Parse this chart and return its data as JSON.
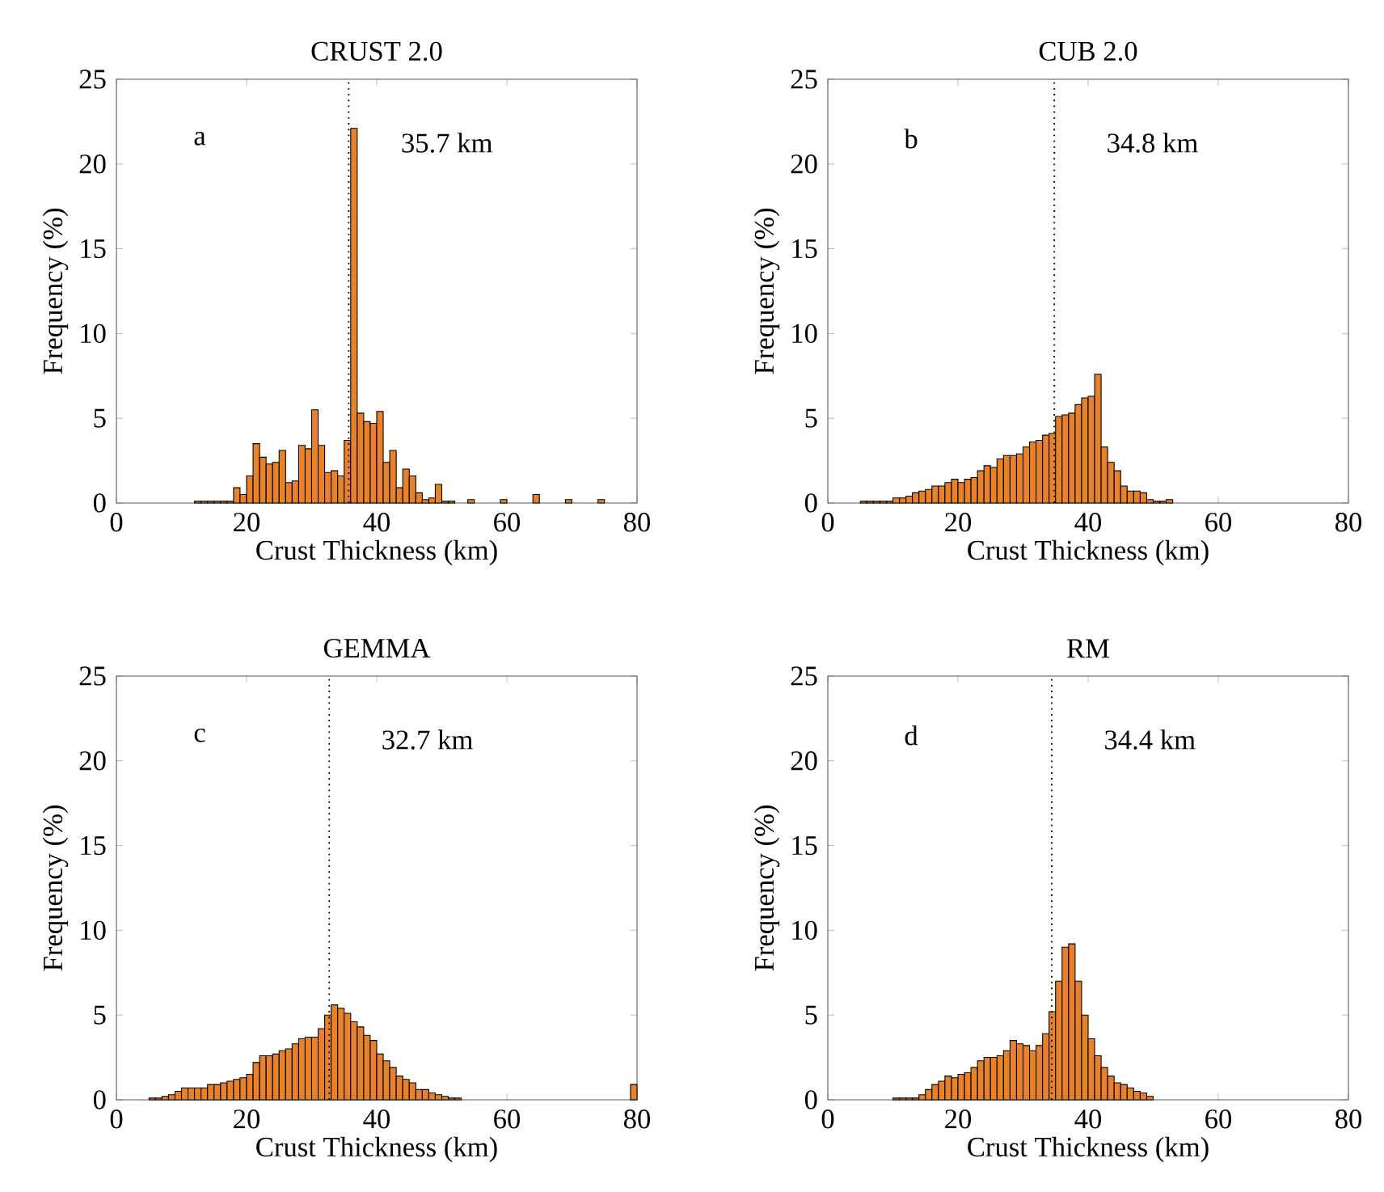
{
  "chart_data": [
    {
      "type": "histogram",
      "title": "CRUST 2.0",
      "xlabel": "Crust Thickness (km)",
      "ylabel": "Frequency (%)",
      "color": "#e8812c",
      "xlim": [
        0,
        80
      ],
      "ylim": [
        0,
        25
      ],
      "xticks": [
        0,
        20,
        40,
        60,
        80
      ],
      "yticks": [
        0,
        5,
        10,
        15,
        20,
        25
      ],
      "annotations": [
        "a"
      ],
      "ref_lines": [
        {
          "axis": "x",
          "value": 35.7,
          "label": "35.7 km",
          "line_style": "dotted"
        }
      ],
      "bins": [
        12,
        13,
        14,
        15,
        16,
        17,
        18,
        19,
        20,
        21,
        22,
        23,
        24,
        25,
        26,
        27,
        28,
        29,
        30,
        31,
        32,
        33,
        34,
        35,
        36,
        37,
        38,
        39,
        40,
        41,
        42,
        43,
        44,
        45,
        46,
        47,
        48,
        49,
        50,
        51,
        52,
        53,
        54,
        55,
        56,
        57,
        58,
        59,
        60,
        61,
        62,
        63,
        64,
        65,
        66,
        67,
        68,
        69,
        70,
        71,
        72,
        73,
        74,
        75
      ],
      "values": [
        0.1,
        0.1,
        0.1,
        0.1,
        0.1,
        0.1,
        0.9,
        0.5,
        1.6,
        3.5,
        2.7,
        2.3,
        2.4,
        3.1,
        1.2,
        1.3,
        3.4,
        3.2,
        5.5,
        3.4,
        1.8,
        1.9,
        1.6,
        3.7,
        22.1,
        5.3,
        4.8,
        4.7,
        5.4,
        2.4,
        3.1,
        0.9,
        2.0,
        1.6,
        0.6,
        0.2,
        0.3,
        1.1,
        0.1,
        0.1,
        null,
        null,
        0.2,
        null,
        null,
        null,
        null,
        0.2,
        null,
        null,
        null,
        null,
        0.5,
        null,
        null,
        null,
        null,
        0.2,
        null,
        null,
        null,
        null,
        0.2
      ]
    },
    {
      "type": "histogram",
      "title": "CUB 2.0",
      "xlabel": "Crust Thickness (km)",
      "ylabel": "Frequency (%)",
      "color": "#e8812c",
      "xlim": [
        0,
        80
      ],
      "ylim": [
        0,
        25
      ],
      "xticks": [
        0,
        20,
        40,
        60,
        80
      ],
      "yticks": [
        0,
        5,
        10,
        15,
        20,
        25
      ],
      "annotations": [
        "b"
      ],
      "ref_lines": [
        {
          "axis": "x",
          "value": 34.8,
          "label": "34.8 km",
          "line_style": "dotted"
        }
      ],
      "bins": [
        5,
        6,
        7,
        8,
        9,
        10,
        11,
        12,
        13,
        14,
        15,
        16,
        17,
        18,
        19,
        20,
        21,
        22,
        23,
        24,
        25,
        26,
        27,
        28,
        29,
        30,
        31,
        32,
        33,
        34,
        35,
        36,
        37,
        38,
        39,
        40,
        41,
        42,
        43,
        44,
        45,
        46,
        47,
        48,
        49,
        50,
        51,
        52,
        53
      ],
      "values": [
        0.1,
        0.1,
        0.1,
        0.1,
        0.1,
        0.3,
        0.3,
        0.4,
        0.6,
        0.7,
        0.8,
        1.0,
        1.0,
        1.2,
        1.4,
        1.2,
        1.4,
        1.5,
        1.9,
        2.2,
        2.1,
        2.6,
        2.8,
        2.8,
        2.9,
        3.3,
        3.6,
        3.7,
        4.0,
        4.1,
        5.1,
        5.2,
        5.3,
        5.8,
        6.2,
        6.3,
        7.6,
        3.3,
        2.4,
        1.9,
        1.0,
        0.7,
        0.7,
        0.6,
        0.2,
        0.1,
        0.1,
        0.2
      ]
    },
    {
      "type": "histogram",
      "title": "GEMMA",
      "xlabel": "Crust Thickness (km)",
      "ylabel": "Frequency (%)",
      "color": "#e8812c",
      "xlim": [
        0,
        80
      ],
      "ylim": [
        0,
        25
      ],
      "xticks": [
        0,
        20,
        40,
        60,
        80
      ],
      "yticks": [
        0,
        5,
        10,
        15,
        20,
        25
      ],
      "annotations": [
        "c"
      ],
      "ref_lines": [
        {
          "axis": "x",
          "value": 32.7,
          "label": "32.7 km",
          "line_style": "dotted"
        }
      ],
      "bins": [
        5,
        6,
        7,
        8,
        9,
        10,
        11,
        12,
        13,
        14,
        15,
        16,
        17,
        18,
        19,
        20,
        21,
        22,
        23,
        24,
        25,
        26,
        27,
        28,
        29,
        30,
        31,
        32,
        33,
        34,
        35,
        36,
        37,
        38,
        39,
        40,
        41,
        42,
        43,
        44,
        45,
        46,
        47,
        48,
        49,
        50,
        51,
        52,
        53,
        54,
        55,
        56,
        57,
        58,
        59,
        60,
        61,
        62,
        63,
        64,
        65,
        66,
        67,
        68,
        69,
        70,
        71,
        72,
        73,
        74,
        75,
        76,
        77,
        78,
        79,
        80
      ],
      "values": [
        0.1,
        0.1,
        0.2,
        0.3,
        0.5,
        0.7,
        0.7,
        0.7,
        0.7,
        0.9,
        0.9,
        1.0,
        1.1,
        1.2,
        1.3,
        1.5,
        2.2,
        2.6,
        2.6,
        2.7,
        2.9,
        3.0,
        3.3,
        3.6,
        3.7,
        3.7,
        4.2,
        5.0,
        5.6,
        5.4,
        5.1,
        4.6,
        4.3,
        3.8,
        3.5,
        2.7,
        2.3,
        1.9,
        1.4,
        1.2,
        1.0,
        0.6,
        0.6,
        0.4,
        0.3,
        0.2,
        0.1,
        0.1,
        null,
        null,
        null,
        null,
        null,
        null,
        null,
        null,
        null,
        null,
        null,
        null,
        null,
        null,
        null,
        null,
        null,
        null,
        null,
        null,
        null,
        null,
        null,
        null,
        null,
        null,
        0.9
      ]
    },
    {
      "type": "histogram",
      "title": "RM",
      "xlabel": "Crust Thickness (km)",
      "ylabel": "Frequency (%)",
      "color": "#e8812c",
      "xlim": [
        0,
        80
      ],
      "ylim": [
        0,
        25
      ],
      "xticks": [
        0,
        20,
        40,
        60,
        80
      ],
      "yticks": [
        0,
        5,
        10,
        15,
        20,
        25
      ],
      "annotations": [
        "d"
      ],
      "ref_lines": [
        {
          "axis": "x",
          "value": 34.4,
          "label": "34.4 km",
          "line_style": "dotted"
        }
      ],
      "bins": [
        10,
        11,
        12,
        13,
        14,
        15,
        16,
        17,
        18,
        19,
        20,
        21,
        22,
        23,
        24,
        25,
        26,
        27,
        28,
        29,
        30,
        31,
        32,
        33,
        34,
        35,
        36,
        37,
        38,
        39,
        40,
        41,
        42,
        43,
        44,
        45,
        46,
        47,
        48,
        49,
        50
      ],
      "values": [
        0.1,
        0.1,
        0.1,
        0.1,
        0.3,
        0.6,
        0.9,
        1.1,
        1.4,
        1.3,
        1.5,
        1.6,
        1.9,
        2.3,
        2.5,
        2.5,
        2.6,
        2.9,
        3.5,
        3.3,
        3.2,
        2.9,
        3.2,
        3.9,
        5.2,
        7.0,
        9.0,
        9.2,
        7.0,
        5.0,
        3.6,
        2.6,
        1.9,
        1.4,
        1.0,
        0.9,
        0.7,
        0.5,
        0.4,
        0.2
      ]
    }
  ]
}
